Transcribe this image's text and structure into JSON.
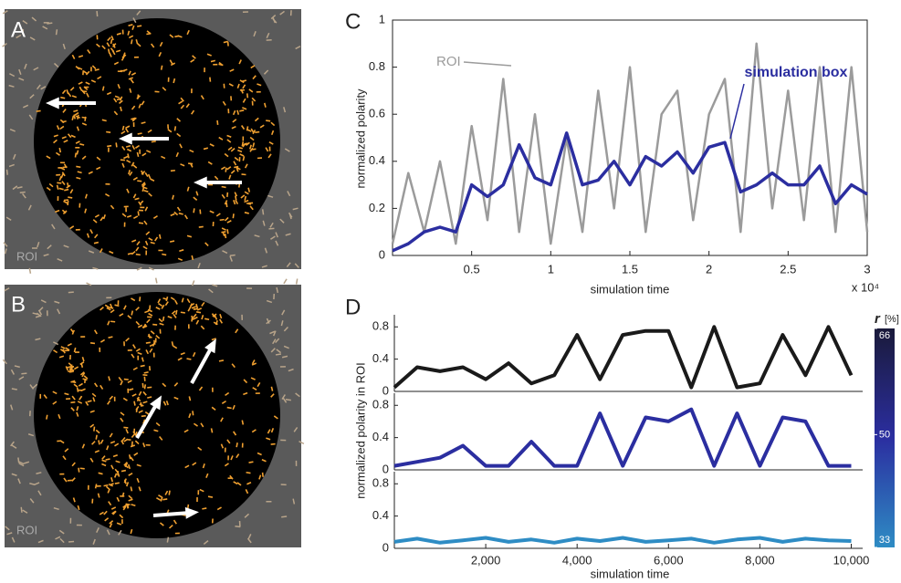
{
  "panels": [
    {
      "label": "A",
      "roi_label": "ROI"
    },
    {
      "label": "B",
      "roi_label": "ROI"
    }
  ],
  "chart_data": [
    {
      "type": "line",
      "panel_label": "C",
      "y_label": "normalized polarity",
      "x_label": "simulation time",
      "x_scale_label": "x 10⁴",
      "x": [
        0,
        0.1,
        0.2,
        0.3,
        0.4,
        0.5,
        0.6,
        0.7,
        0.8,
        0.9,
        1.0,
        1.1,
        1.2,
        1.3,
        1.4,
        1.5,
        1.6,
        1.7,
        1.8,
        1.9,
        2.0,
        2.1,
        2.2,
        2.3,
        2.4,
        2.5,
        2.6,
        2.7,
        2.8,
        2.9,
        3.0
      ],
      "series": [
        {
          "name": "ROI",
          "color": "#9b9b9b",
          "values": [
            0.05,
            0.35,
            0.1,
            0.4,
            0.05,
            0.55,
            0.15,
            0.75,
            0.1,
            0.6,
            0.05,
            0.5,
            0.1,
            0.7,
            0.2,
            0.8,
            0.1,
            0.6,
            0.7,
            0.15,
            0.6,
            0.75,
            0.1,
            0.9,
            0.2,
            0.7,
            0.15,
            0.8,
            0.1,
            0.8,
            0.1
          ]
        },
        {
          "name": "simulation box",
          "color": "#2b2ea0",
          "values": [
            0.02,
            0.05,
            0.1,
            0.12,
            0.1,
            0.3,
            0.25,
            0.3,
            0.47,
            0.33,
            0.3,
            0.52,
            0.3,
            0.32,
            0.4,
            0.3,
            0.42,
            0.38,
            0.44,
            0.35,
            0.46,
            0.48,
            0.27,
            0.3,
            0.35,
            0.3,
            0.3,
            0.38,
            0.22,
            0.3,
            0.26
          ]
        }
      ],
      "xlim": [
        0,
        3
      ],
      "xticks": [
        0.5,
        1,
        1.5,
        2,
        2.5,
        3
      ],
      "ylim": [
        0,
        1
      ],
      "yticks": [
        0,
        0.2,
        0.4,
        0.6,
        0.8,
        1
      ]
    },
    {
      "type": "line",
      "panel_label": "D",
      "y_label": "normalized polarity in ROI",
      "x_label": "simulation time",
      "x": [
        0,
        500,
        1000,
        1500,
        2000,
        2500,
        3000,
        3500,
        4000,
        4500,
        5000,
        5500,
        6000,
        6500,
        7000,
        7500,
        8000,
        8500,
        9000,
        9500,
        10000
      ],
      "series": [
        {
          "color": "#1a1a1a",
          "values": [
            0.05,
            0.3,
            0.25,
            0.3,
            0.15,
            0.35,
            0.1,
            0.2,
            0.7,
            0.15,
            0.7,
            0.75,
            0.75,
            0.05,
            0.8,
            0.05,
            0.1,
            0.7,
            0.2,
            0.8,
            0.2
          ]
        },
        {
          "color": "#2b2ea0",
          "values": [
            0.05,
            0.1,
            0.15,
            0.3,
            0.05,
            0.05,
            0.35,
            0.05,
            0.05,
            0.7,
            0.05,
            0.65,
            0.6,
            0.75,
            0.05,
            0.7,
            0.05,
            0.65,
            0.6,
            0.05,
            0.05
          ]
        },
        {
          "color": "#2e8cc4",
          "values": [
            0.08,
            0.12,
            0.07,
            0.1,
            0.13,
            0.08,
            0.11,
            0.07,
            0.12,
            0.09,
            0.13,
            0.08,
            0.1,
            0.12,
            0.07,
            0.11,
            0.13,
            0.08,
            0.12,
            0.1,
            0.09
          ]
        }
      ],
      "xlim": [
        0,
        10250
      ],
      "xticks": [
        {
          "value": 2000,
          "label": "2,000"
        },
        {
          "value": 4000,
          "label": "4,000"
        },
        {
          "value": 6000,
          "label": "6,000"
        },
        {
          "value": 8000,
          "label": "8,000"
        },
        {
          "value": 10000,
          "label": "10,000"
        }
      ],
      "ylim": [
        0,
        0.95
      ],
      "yticks": [
        0,
        0.4,
        0.8
      ],
      "colorbar": {
        "label": "r",
        "unit": "[%]",
        "lim": [
          33,
          66
        ],
        "ticks": [
          66,
          50,
          33
        ]
      }
    }
  ]
}
